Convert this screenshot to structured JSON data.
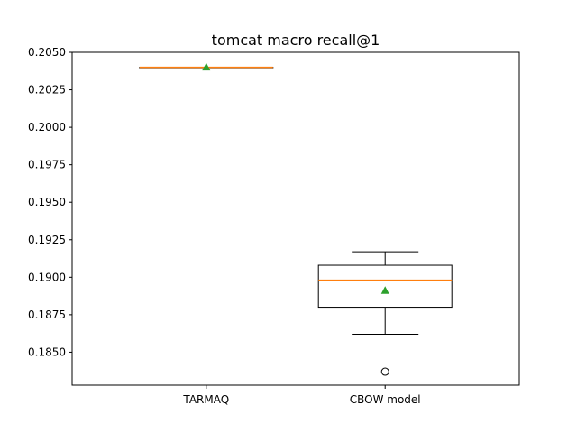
{
  "chart_data": {
    "type": "box",
    "title": "tomcat macro recall@1",
    "xlabel": "",
    "ylabel": "",
    "ylim": [
      0.1828,
      0.205
    ],
    "yticks": [
      "0.1850",
      "0.1875",
      "0.1900",
      "0.1925",
      "0.1950",
      "0.1975",
      "0.2000",
      "0.2025",
      "0.2050"
    ],
    "categories": [
      "TARMAQ",
      "CBOW model"
    ],
    "boxes": [
      {
        "name": "TARMAQ",
        "whisker_low": 0.204,
        "q1": 0.204,
        "median": 0.204,
        "q3": 0.204,
        "whisker_high": 0.204,
        "mean": 0.204,
        "outliers": []
      },
      {
        "name": "CBOW model",
        "whisker_low": 0.1862,
        "q1": 0.188,
        "median": 0.1898,
        "q3": 0.1908,
        "whisker_high": 0.1917,
        "mean": 0.1891,
        "outliers": [
          0.1837
        ]
      }
    ],
    "grid": false,
    "colors": {
      "box": "#000000",
      "median": "#ff7f0e",
      "mean": "#2ca02c"
    }
  }
}
